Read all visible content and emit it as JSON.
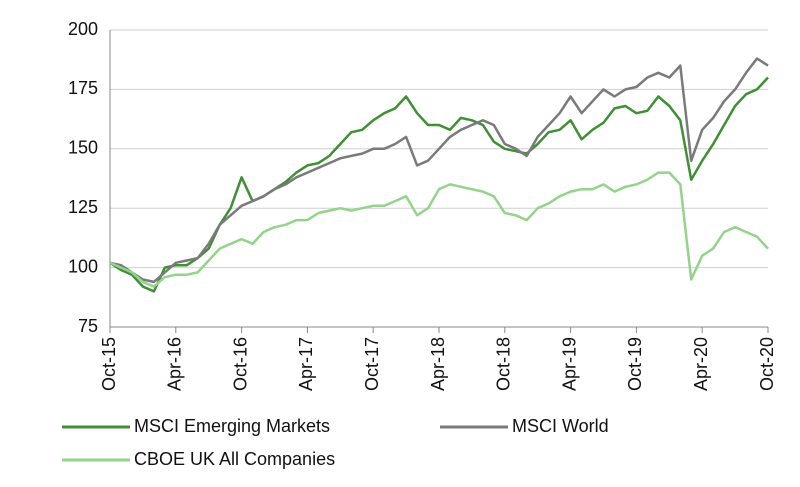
{
  "chart_data": {
    "type": "line",
    "categories": [
      "Oct-15",
      null,
      null,
      null,
      null,
      null,
      "Apr-16",
      null,
      null,
      null,
      null,
      null,
      "Oct-16",
      null,
      null,
      null,
      null,
      null,
      "Apr-17",
      null,
      null,
      null,
      null,
      null,
      "Oct-17",
      null,
      null,
      null,
      null,
      null,
      "Apr-18",
      null,
      null,
      null,
      null,
      null,
      "Oct-18",
      null,
      null,
      null,
      null,
      null,
      "Apr-19",
      null,
      null,
      null,
      null,
      null,
      "Oct-19",
      null,
      null,
      null,
      null,
      null,
      "Apr-20",
      null,
      null,
      null,
      null,
      null,
      "Oct-20"
    ],
    "series": [
      {
        "name": "MSCI Emerging Markets",
        "color": "#3f8f35",
        "values": [
          102,
          99,
          97,
          92,
          90,
          100,
          101,
          101,
          104,
          108,
          118,
          125,
          138,
          128,
          130,
          133,
          136,
          140,
          143,
          144,
          147,
          152,
          157,
          158,
          162,
          165,
          167,
          172,
          165,
          160,
          160,
          158,
          163,
          162,
          160,
          153,
          150,
          149,
          148,
          152,
          157,
          158,
          162,
          154,
          158,
          161,
          167,
          168,
          165,
          166,
          172,
          168,
          162,
          137,
          145,
          152,
          160,
          168,
          173,
          175,
          180
        ]
      },
      {
        "name": "MSCI World",
        "color": "#7a7a7a",
        "values": [
          102,
          101,
          98,
          95,
          94,
          98,
          102,
          103,
          104,
          110,
          118,
          122,
          126,
          128,
          130,
          133,
          135,
          138,
          140,
          142,
          144,
          146,
          147,
          148,
          150,
          150,
          152,
          155,
          143,
          145,
          150,
          155,
          158,
          160,
          162,
          160,
          152,
          150,
          147,
          155,
          160,
          165,
          172,
          165,
          170,
          175,
          172,
          175,
          176,
          180,
          182,
          180,
          185,
          145,
          158,
          163,
          170,
          175,
          182,
          188,
          185
        ]
      },
      {
        "name": "CBOE UK All Companies",
        "color": "#93d48a",
        "values": [
          102,
          100,
          98,
          94,
          92,
          96,
          97,
          97,
          98,
          103,
          108,
          110,
          112,
          110,
          115,
          117,
          118,
          120,
          120,
          123,
          124,
          125,
          124,
          125,
          126,
          126,
          128,
          130,
          122,
          125,
          133,
          135,
          134,
          133,
          132,
          130,
          123,
          122,
          120,
          125,
          127,
          130,
          132,
          133,
          133,
          135,
          132,
          134,
          135,
          137,
          140,
          140,
          135,
          95,
          105,
          108,
          115,
          117,
          115,
          113,
          108
        ]
      }
    ],
    "ylim": [
      75,
      200
    ],
    "yticks": [
      75,
      100,
      125,
      150,
      175,
      200
    ],
    "grid": true
  }
}
